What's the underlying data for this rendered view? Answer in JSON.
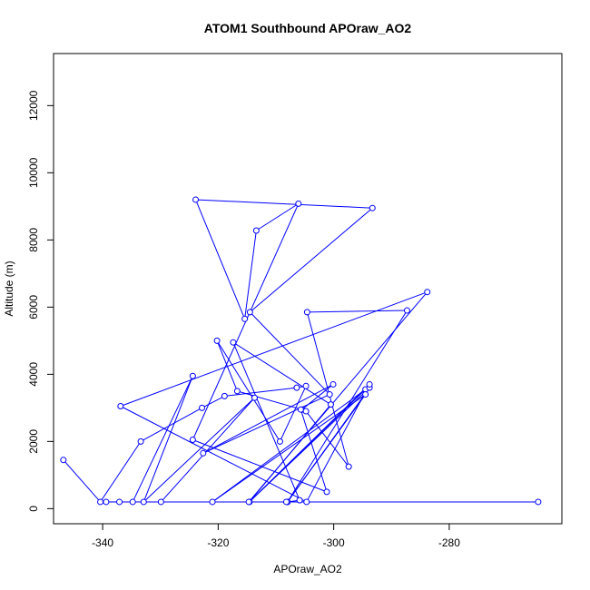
{
  "chart_data": {
    "type": "line",
    "title": "ATOM1 Southbound APOraw_AO2",
    "xlabel": "APOraw_AO2",
    "ylabel": "Altitude (m)",
    "xlim": [
      -348.5,
      -260.5
    ],
    "ylim": [
      -450,
      13550
    ],
    "x_ticks": [
      -340,
      -320,
      -300,
      -280
    ],
    "x_tick_labels": [
      "-340",
      "-320",
      "-300",
      "-280"
    ],
    "y_ticks": [
      0,
      2000,
      4000,
      6000,
      8000,
      10000,
      12000
    ],
    "y_tick_labels": [
      "0",
      "2000",
      "4000",
      "6000",
      "8000",
      "10000",
      "12000"
    ],
    "grid": false,
    "legend": "none",
    "colors": {
      "series": "#0000ff",
      "axis": "#000000",
      "background": "#ffffff"
    },
    "series": [
      {
        "marker": "open-circle",
        "x": [
          -346.8,
          -340.4,
          -333.4,
          -322.8,
          -318.9,
          -306.4,
          -304.8,
          -309.3,
          -320.2,
          -316.7,
          -305.5,
          -300.1,
          -322.6,
          -300.7,
          -314.5,
          -293.3,
          -323.9,
          -315.4,
          -313.4,
          -306.1,
          -324.4,
          -301.2,
          -305.7,
          -304.8,
          -297.4,
          -304.6,
          -287.3,
          -308.0,
          -305.9,
          -317.4,
          -300.5,
          -314.6,
          -294.5,
          -321.0,
          -294.5,
          -308.0,
          -293.8,
          -314.6,
          -293.8,
          -304.7,
          -336.9,
          -283.8,
          -314.7,
          -308.2,
          -337.1,
          -339.4,
          -329.9,
          -313.7,
          -332.9,
          -324.4,
          -334.8,
          -264.6
        ],
        "y": [
          1450,
          200,
          2000,
          3000,
          3350,
          3600,
          3650,
          2000,
          5000,
          3500,
          2950,
          3700,
          1650,
          3400,
          5850,
          8950,
          9200,
          5650,
          8280,
          9080,
          2050,
          500,
          2950,
          2900,
          1250,
          5850,
          5900,
          200,
          250,
          4950,
          3100,
          200,
          3550,
          200,
          3400,
          200,
          3600,
          200,
          3700,
          200,
          3050,
          6450,
          200,
          200,
          200,
          200,
          200,
          3300,
          200,
          3950,
          200,
          200
        ]
      }
    ]
  }
}
